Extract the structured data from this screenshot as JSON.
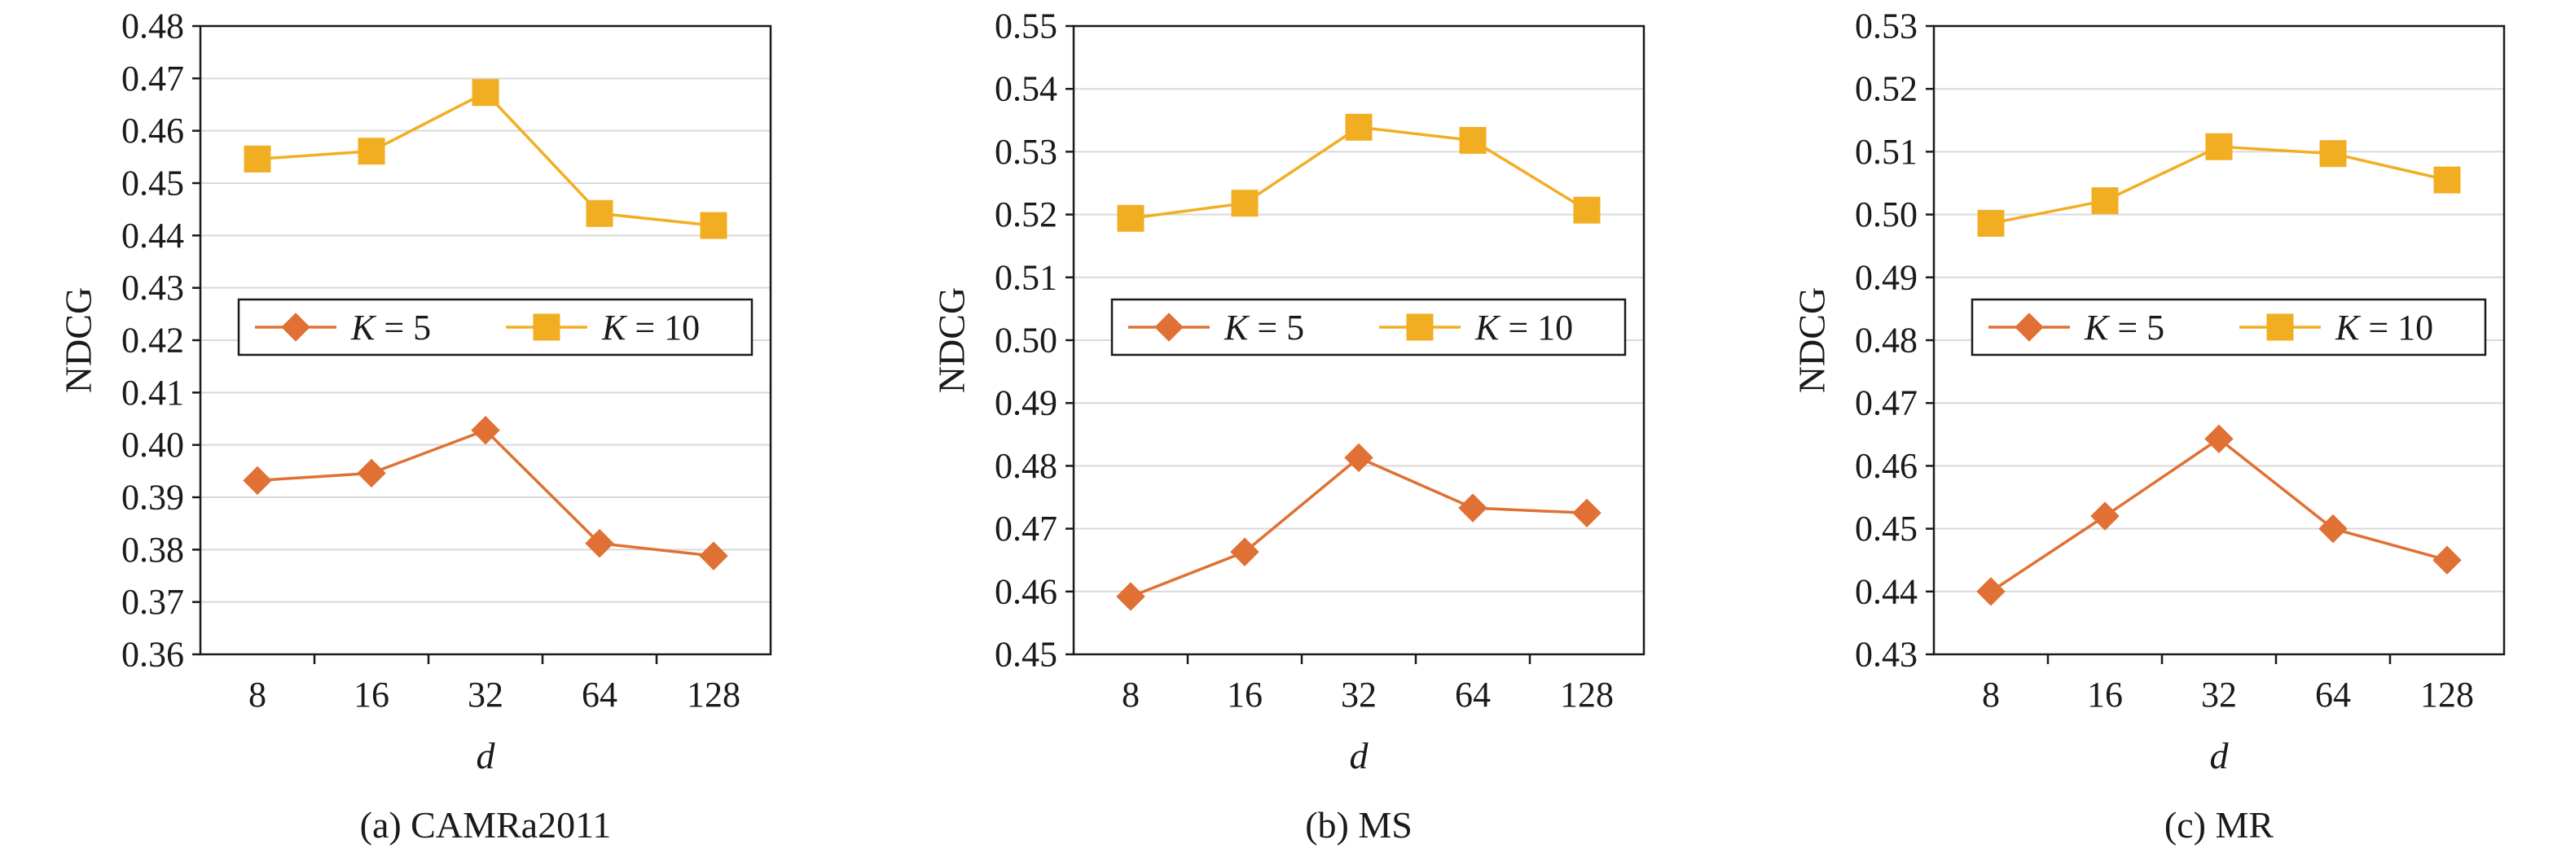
{
  "chart_data": [
    {
      "type": "line",
      "caption": "(a) CAMRa2011",
      "xlabel": "d",
      "ylabel": "NDCG",
      "categories": [
        "8",
        "16",
        "32",
        "64",
        "128"
      ],
      "ylim": [
        0.36,
        0.48
      ],
      "yticks": [
        "0.36",
        "0.37",
        "0.38",
        "0.39",
        "0.40",
        "0.41",
        "0.42",
        "0.43",
        "0.44",
        "0.45",
        "0.46",
        "0.47",
        "0.48"
      ],
      "grid": true,
      "legend_position": "middle",
      "series": [
        {
          "name": "K = 5",
          "values": [
            0.3932,
            0.3946,
            0.4028,
            0.3812,
            0.3788
          ]
        },
        {
          "name": "K = 10",
          "values": [
            0.4546,
            0.4561,
            0.4673,
            0.4442,
            0.4419
          ]
        }
      ]
    },
    {
      "type": "line",
      "caption": "(b) MS",
      "xlabel": "d",
      "ylabel": "NDCG",
      "categories": [
        "8",
        "16",
        "32",
        "64",
        "128"
      ],
      "ylim": [
        0.45,
        0.55
      ],
      "yticks": [
        "0.45",
        "0.46",
        "0.47",
        "0.48",
        "0.49",
        "0.50",
        "0.51",
        "0.52",
        "0.53",
        "0.54",
        "0.55"
      ],
      "grid": true,
      "legend_position": "middle",
      "series": [
        {
          "name": "K = 5",
          "values": [
            0.4592,
            0.4663,
            0.4813,
            0.4733,
            0.4725
          ]
        },
        {
          "name": "K = 10",
          "values": [
            0.5194,
            0.5218,
            0.5339,
            0.5318,
            0.5207
          ]
        }
      ]
    },
    {
      "type": "line",
      "caption": "(c) MR",
      "xlabel": "d",
      "ylabel": "NDCG",
      "categories": [
        "8",
        "16",
        "32",
        "64",
        "128"
      ],
      "ylim": [
        0.43,
        0.53
      ],
      "yticks": [
        "0.43",
        "0.44",
        "0.45",
        "0.46",
        "0.47",
        "0.48",
        "0.49",
        "0.50",
        "0.51",
        "0.52",
        "0.53"
      ],
      "grid": true,
      "legend_position": "middle",
      "series": [
        {
          "name": "K = 5",
          "values": [
            0.44,
            0.452,
            0.4643,
            0.45,
            0.445
          ]
        },
        {
          "name": "K = 10",
          "values": [
            0.4986,
            0.5022,
            0.5108,
            0.5097,
            0.5055
          ]
        }
      ]
    }
  ],
  "colors": {
    "k5": "#E07033",
    "k10": "#F2AE22",
    "grid": "#d9d9d9",
    "axis": "#1a1a1a"
  }
}
